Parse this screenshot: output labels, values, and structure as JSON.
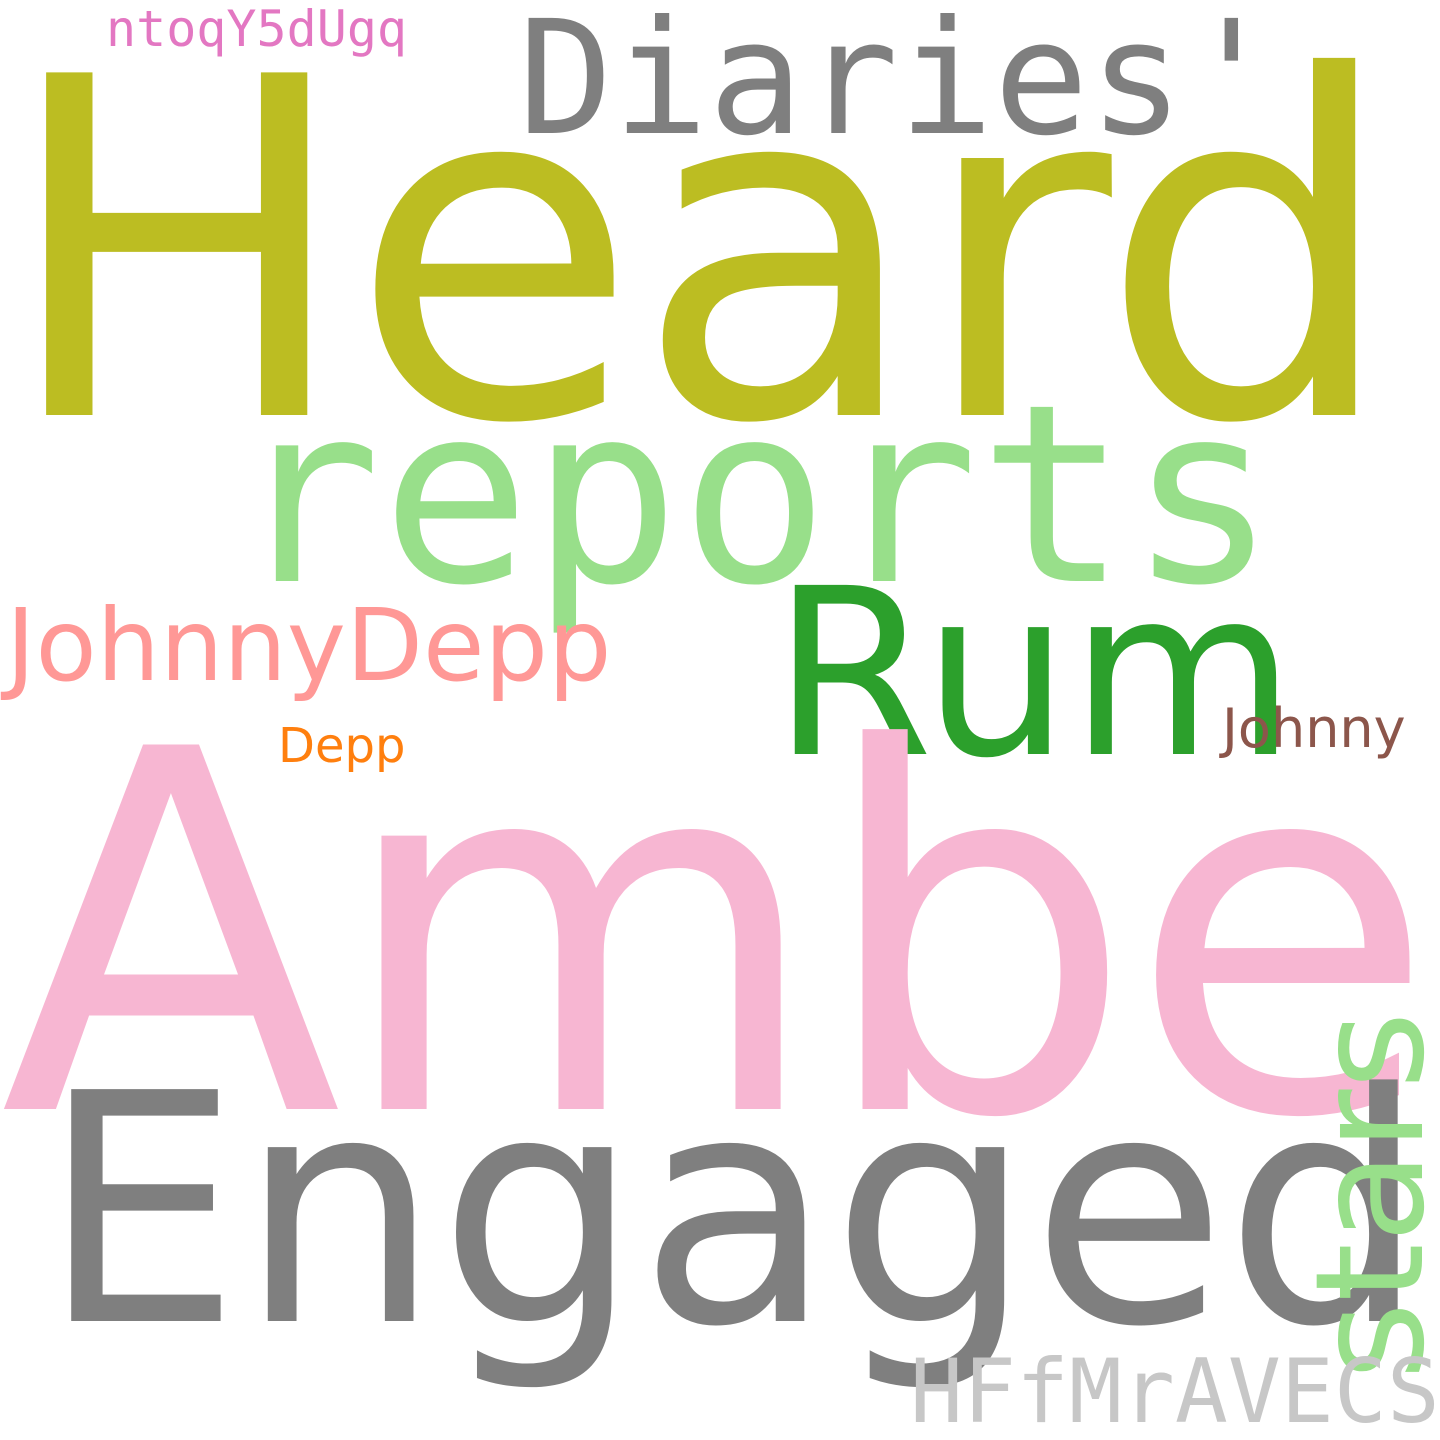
{
  "words": [
    {
      "key": "heard",
      "text": "Heard",
      "color": "#bcbd22"
    },
    {
      "key": "amber",
      "text": "Amber",
      "color": "#f7b6d2"
    },
    {
      "key": "engaged",
      "text": "Engaged",
      "color": "#7f7f7f"
    },
    {
      "key": "reports",
      "text": "reports",
      "color": "#98df8a"
    },
    {
      "key": "diaries",
      "text": "Diaries'",
      "color": "#7f7f7f"
    },
    {
      "key": "rum",
      "text": "Rum",
      "color": "#2ca02c"
    },
    {
      "key": "stars",
      "text": "stars",
      "color": "#98df8a"
    },
    {
      "key": "johnnydepp",
      "text": "JohnnyDepp",
      "color": "#ff9896"
    },
    {
      "key": "hffmravecs",
      "text": "HFfMrAVECS",
      "color": "#c7c7c7"
    },
    {
      "key": "ntoqy",
      "text": "ntoqY5dUgq",
      "color": "#e377c2"
    },
    {
      "key": "johnny",
      "text": "Johnny",
      "color": "#8c564b"
    },
    {
      "key": "depp",
      "text": "Depp",
      "color": "#ff7f0e"
    }
  ]
}
